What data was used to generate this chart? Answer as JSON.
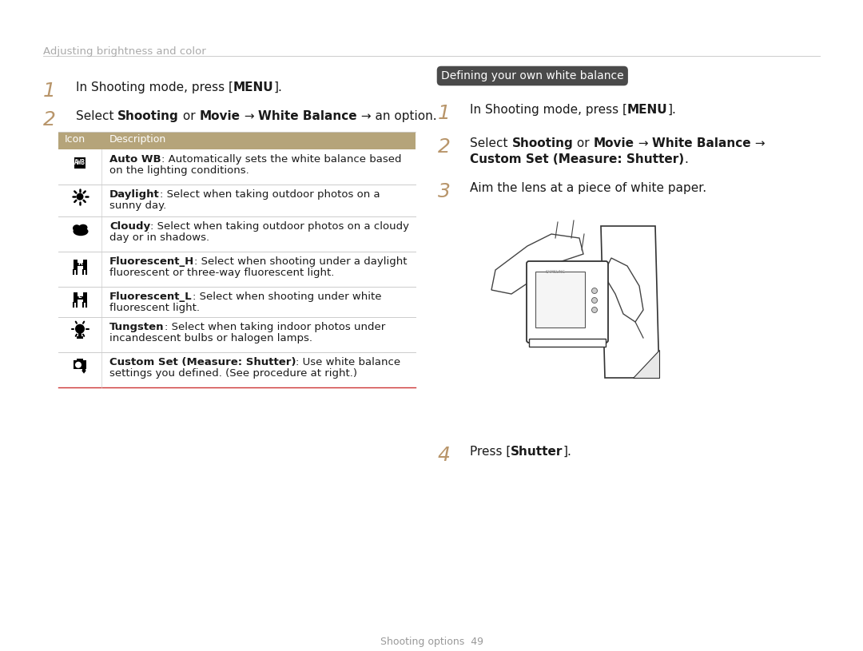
{
  "page_bg": "#ffffff",
  "header_text": "Adjusting brightness and color",
  "header_color": "#aaaaaa",
  "header_line_color": "#cccccc",
  "step_number_color": "#b8956a",
  "step_text_color": "#1a1a1a",
  "table_header_bg": "#b5a47a",
  "table_header_text_color": "#ffffff",
  "table_row_line_color": "#cccccc",
  "table_bottom_line_color": "#cc3333",
  "section_badge_bg": "#4a4a4a",
  "section_badge_text": "Defining your own white balance",
  "section_badge_text_color": "#ffffff",
  "footer_text": "Shooting options  49",
  "footer_color": "#999999"
}
